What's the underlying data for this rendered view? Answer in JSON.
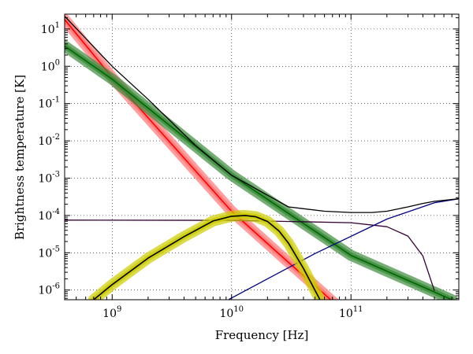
{
  "chart_data": {
    "type": "line",
    "title": "",
    "xlabel": "Frequency [Hz]",
    "ylabel": "Brightness temperature [K]",
    "x_scale": "log",
    "y_scale": "log",
    "xlim": [
      400000000,
      800000000000
    ],
    "ylim": [
      5.5e-07,
      25
    ],
    "grid": true,
    "grid_style": "dotted",
    "x_ticks": [
      {
        "value": 1000000000,
        "base": "10",
        "exp": "9"
      },
      {
        "value": 10000000000,
        "base": "10",
        "exp": "10"
      },
      {
        "value": 100000000000,
        "base": "10",
        "exp": "11"
      }
    ],
    "y_ticks": [
      {
        "value": 10,
        "base": "10",
        "exp": "1"
      },
      {
        "value": 1,
        "base": "10",
        "exp": "0"
      },
      {
        "value": 0.1,
        "base": "10",
        "exp": "-1"
      },
      {
        "value": 0.01,
        "base": "10",
        "exp": "-2"
      },
      {
        "value": 0.001,
        "base": "10",
        "exp": "-3"
      },
      {
        "value": 0.0001,
        "base": "10",
        "exp": "-4"
      },
      {
        "value": 1e-05,
        "base": "10",
        "exp": "-5"
      },
      {
        "value": 1e-06,
        "base": "10",
        "exp": "-6"
      }
    ],
    "series": [
      {
        "color": "#ff0000",
        "band": true,
        "band_color": "#ff7777",
        "x": [
          400000000,
          1000000000,
          10000000000,
          30000000000,
          50000000000,
          100000000000
        ],
        "y": [
          18,
          0.5,
          0.00013,
          5.5e-06,
          1.3e-06,
          1.8e-07
        ]
      },
      {
        "color": "#006600",
        "band": true,
        "band_color": "#3c8c3c",
        "x": [
          400000000,
          1000000000,
          10000000000,
          100000000000,
          700000000000
        ],
        "y": [
          3.5,
          0.45,
          0.0012,
          8.5e-06,
          5.5e-07
        ]
      },
      {
        "color": "#330033",
        "band": false,
        "x": [
          400000000,
          10000000000,
          100000000000,
          200000000000,
          300000000000,
          400000000000,
          500000000000
        ],
        "y": [
          7.5e-05,
          7.4e-05,
          6.4e-05,
          5e-05,
          2.8e-05,
          8.2e-06,
          9.5e-07
        ]
      },
      {
        "color": "#000080",
        "band": false,
        "x": [
          9500000000,
          50000000000,
          200000000000,
          500000000000,
          800000000000
        ],
        "y": [
          5.6e-07,
          9.5e-06,
          8e-05,
          0.00022,
          0.00028
        ]
      },
      {
        "color": "#000000",
        "band": true,
        "band_color": "#cccc00",
        "x": [
          700000000,
          1000000000,
          2000000000,
          4000000000,
          7000000000,
          10000000000,
          13000000000,
          16000000000,
          20000000000,
          25000000000,
          30000000000,
          40000000000,
          55000000000
        ],
        "y": [
          5.5e-07,
          1.4e-06,
          7.2e-06,
          2.7e-05,
          7.1e-05,
          9.5e-05,
          0.0001,
          9.2e-05,
          6.9e-05,
          3.8e-05,
          1.8e-05,
          3.8e-06,
          5.5e-07
        ]
      },
      {
        "color": "#000000",
        "band": false,
        "x": [
          400000000,
          1000000000,
          2000000000,
          5000000000,
          10000000000,
          30000000000,
          60000000000,
          100000000000,
          150000000000,
          200000000000,
          300000000000,
          400000000000,
          500000000000,
          800000000000
        ],
        "y": [
          22,
          1.0,
          0.13,
          0.0075,
          0.0012,
          0.00017,
          0.00013,
          0.00012,
          0.00012,
          0.00013,
          0.00017,
          0.00021,
          0.00024,
          0.00028
        ]
      }
    ]
  }
}
